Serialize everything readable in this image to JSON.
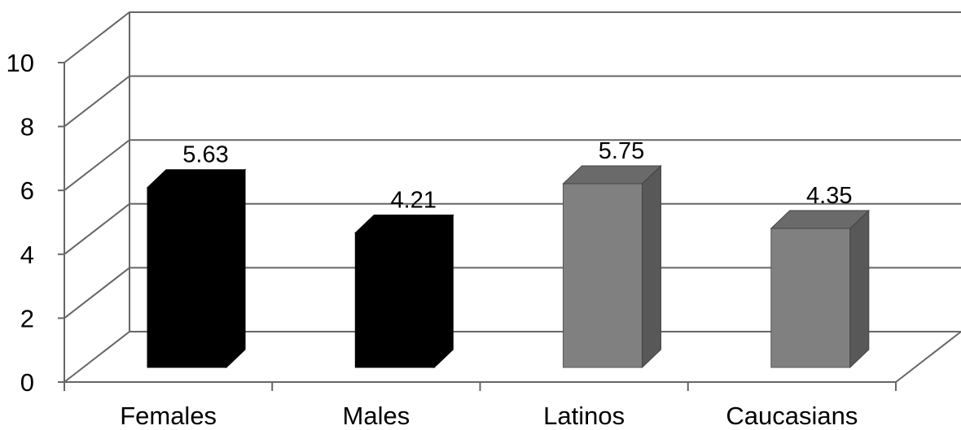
{
  "chart_data": {
    "type": "bar",
    "categories": [
      "Females",
      "Males",
      "Latinos",
      "Caucasians"
    ],
    "values": [
      5.63,
      4.21,
      5.75,
      4.35
    ],
    "data_labels": [
      "5.63",
      "4.21",
      "5.75",
      "4.35"
    ],
    "title": "",
    "xlabel": "",
    "ylabel": "",
    "ylim": [
      0,
      10
    ],
    "yticks": [
      "0",
      "2",
      "4",
      "6",
      "8",
      "10"
    ],
    "grid": true,
    "legend": "none",
    "style": "3d-column",
    "colors": [
      "#000000",
      "#000000",
      "#808080",
      "#808080"
    ]
  }
}
